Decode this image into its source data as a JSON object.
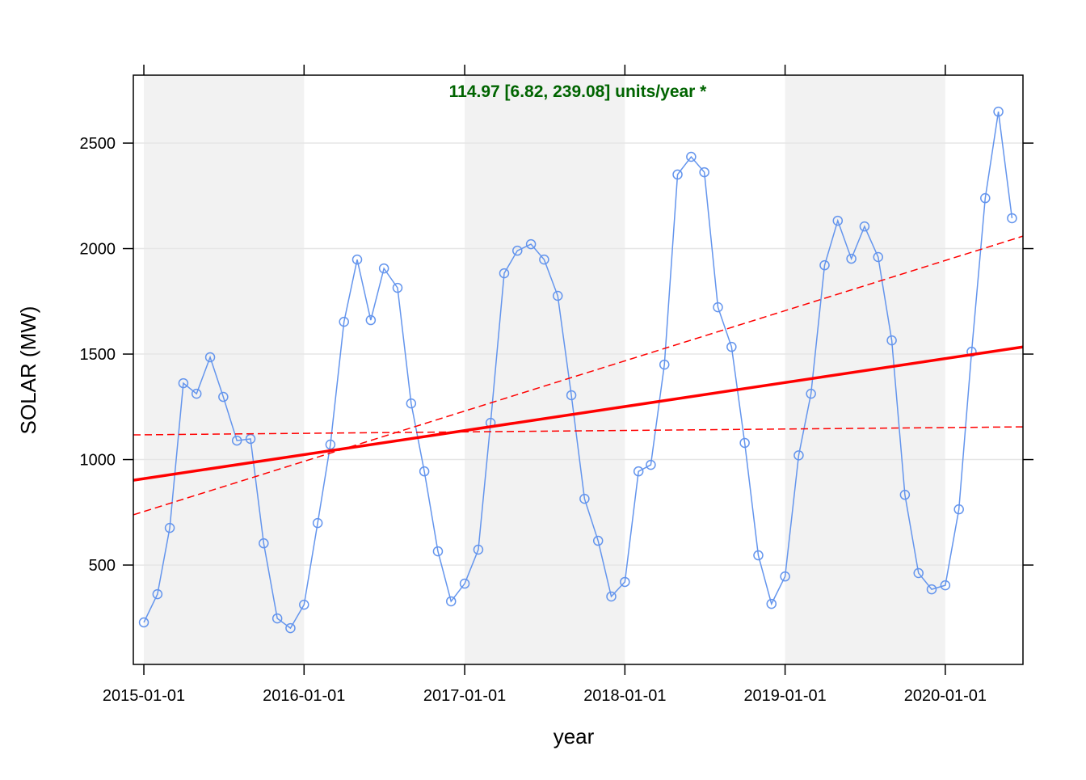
{
  "chart_data": {
    "type": "line",
    "annotation": "114.97 [6.82, 239.08] units/year *",
    "annotation_color": "#006400",
    "xlabel": "year",
    "ylabel": "SOLAR (MW)",
    "xlim": [
      "2014-12-08",
      "2020-06-26"
    ],
    "xticks": [
      "2015-01-01",
      "2016-01-01",
      "2017-01-01",
      "2018-01-01",
      "2019-01-01",
      "2020-01-01"
    ],
    "ylim": [
      29,
      2822
    ],
    "yticks": [
      500,
      1000,
      1500,
      2000,
      2500
    ],
    "grid": true,
    "shade_color": "#f2f2f2",
    "x": [
      "2015-01-01",
      "2015-02-01",
      "2015-03-01",
      "2015-04-01",
      "2015-05-01",
      "2015-06-01",
      "2015-07-01",
      "2015-08-01",
      "2015-09-01",
      "2015-10-01",
      "2015-11-01",
      "2015-12-01",
      "2016-01-01",
      "2016-02-01",
      "2016-03-01",
      "2016-04-01",
      "2016-05-01",
      "2016-06-01",
      "2016-07-01",
      "2016-08-01",
      "2016-09-01",
      "2016-10-01",
      "2016-11-01",
      "2016-12-01",
      "2017-01-01",
      "2017-02-01",
      "2017-03-01",
      "2017-04-01",
      "2017-05-01",
      "2017-06-01",
      "2017-07-01",
      "2017-08-01",
      "2017-09-01",
      "2017-10-01",
      "2017-11-01",
      "2017-12-01",
      "2018-01-01",
      "2018-02-01",
      "2018-03-01",
      "2018-04-01",
      "2018-05-01",
      "2018-06-01",
      "2018-07-01",
      "2018-08-01",
      "2018-09-01",
      "2018-10-01",
      "2018-11-01",
      "2018-12-01",
      "2019-01-01",
      "2019-02-01",
      "2019-03-01",
      "2019-04-01",
      "2019-05-01",
      "2019-06-01",
      "2019-07-01",
      "2019-08-01",
      "2019-09-01",
      "2019-10-01",
      "2019-11-01",
      "2019-12-01",
      "2020-01-01",
      "2020-02-01",
      "2020-03-01",
      "2020-04-01",
      "2020-05-01",
      "2020-06-01"
    ],
    "series": [
      {
        "name": "SOLAR",
        "color": "#6495ED",
        "values": [
          228,
          362,
          676,
          1362,
          1312,
          1485,
          1297,
          1090,
          1098,
          603,
          247,
          201,
          312,
          699,
          1071,
          1653,
          1948,
          1661,
          1906,
          1814,
          1266,
          944,
          565,
          328,
          412,
          573,
          1174,
          1883,
          1990,
          2021,
          1948,
          1776,
          1305,
          814,
          615,
          351,
          420,
          944,
          975,
          1450,
          2351,
          2435,
          2362,
          1722,
          1534,
          1079,
          546,
          316,
          446,
          1020,
          1312,
          1921,
          2132,
          1952,
          2105,
          1960,
          1565,
          833,
          462,
          385,
          404,
          764,
          1511,
          2239,
          2649,
          2144
        ]
      }
    ],
    "trend_lines": [
      {
        "color": "red",
        "dashed": false,
        "values": [
          902,
          1534
        ]
      },
      {
        "color": "red",
        "dashed": true,
        "values": [
          738,
          2059
        ]
      },
      {
        "color": "red",
        "dashed": true,
        "values": [
          1117,
          1155
        ]
      }
    ]
  }
}
